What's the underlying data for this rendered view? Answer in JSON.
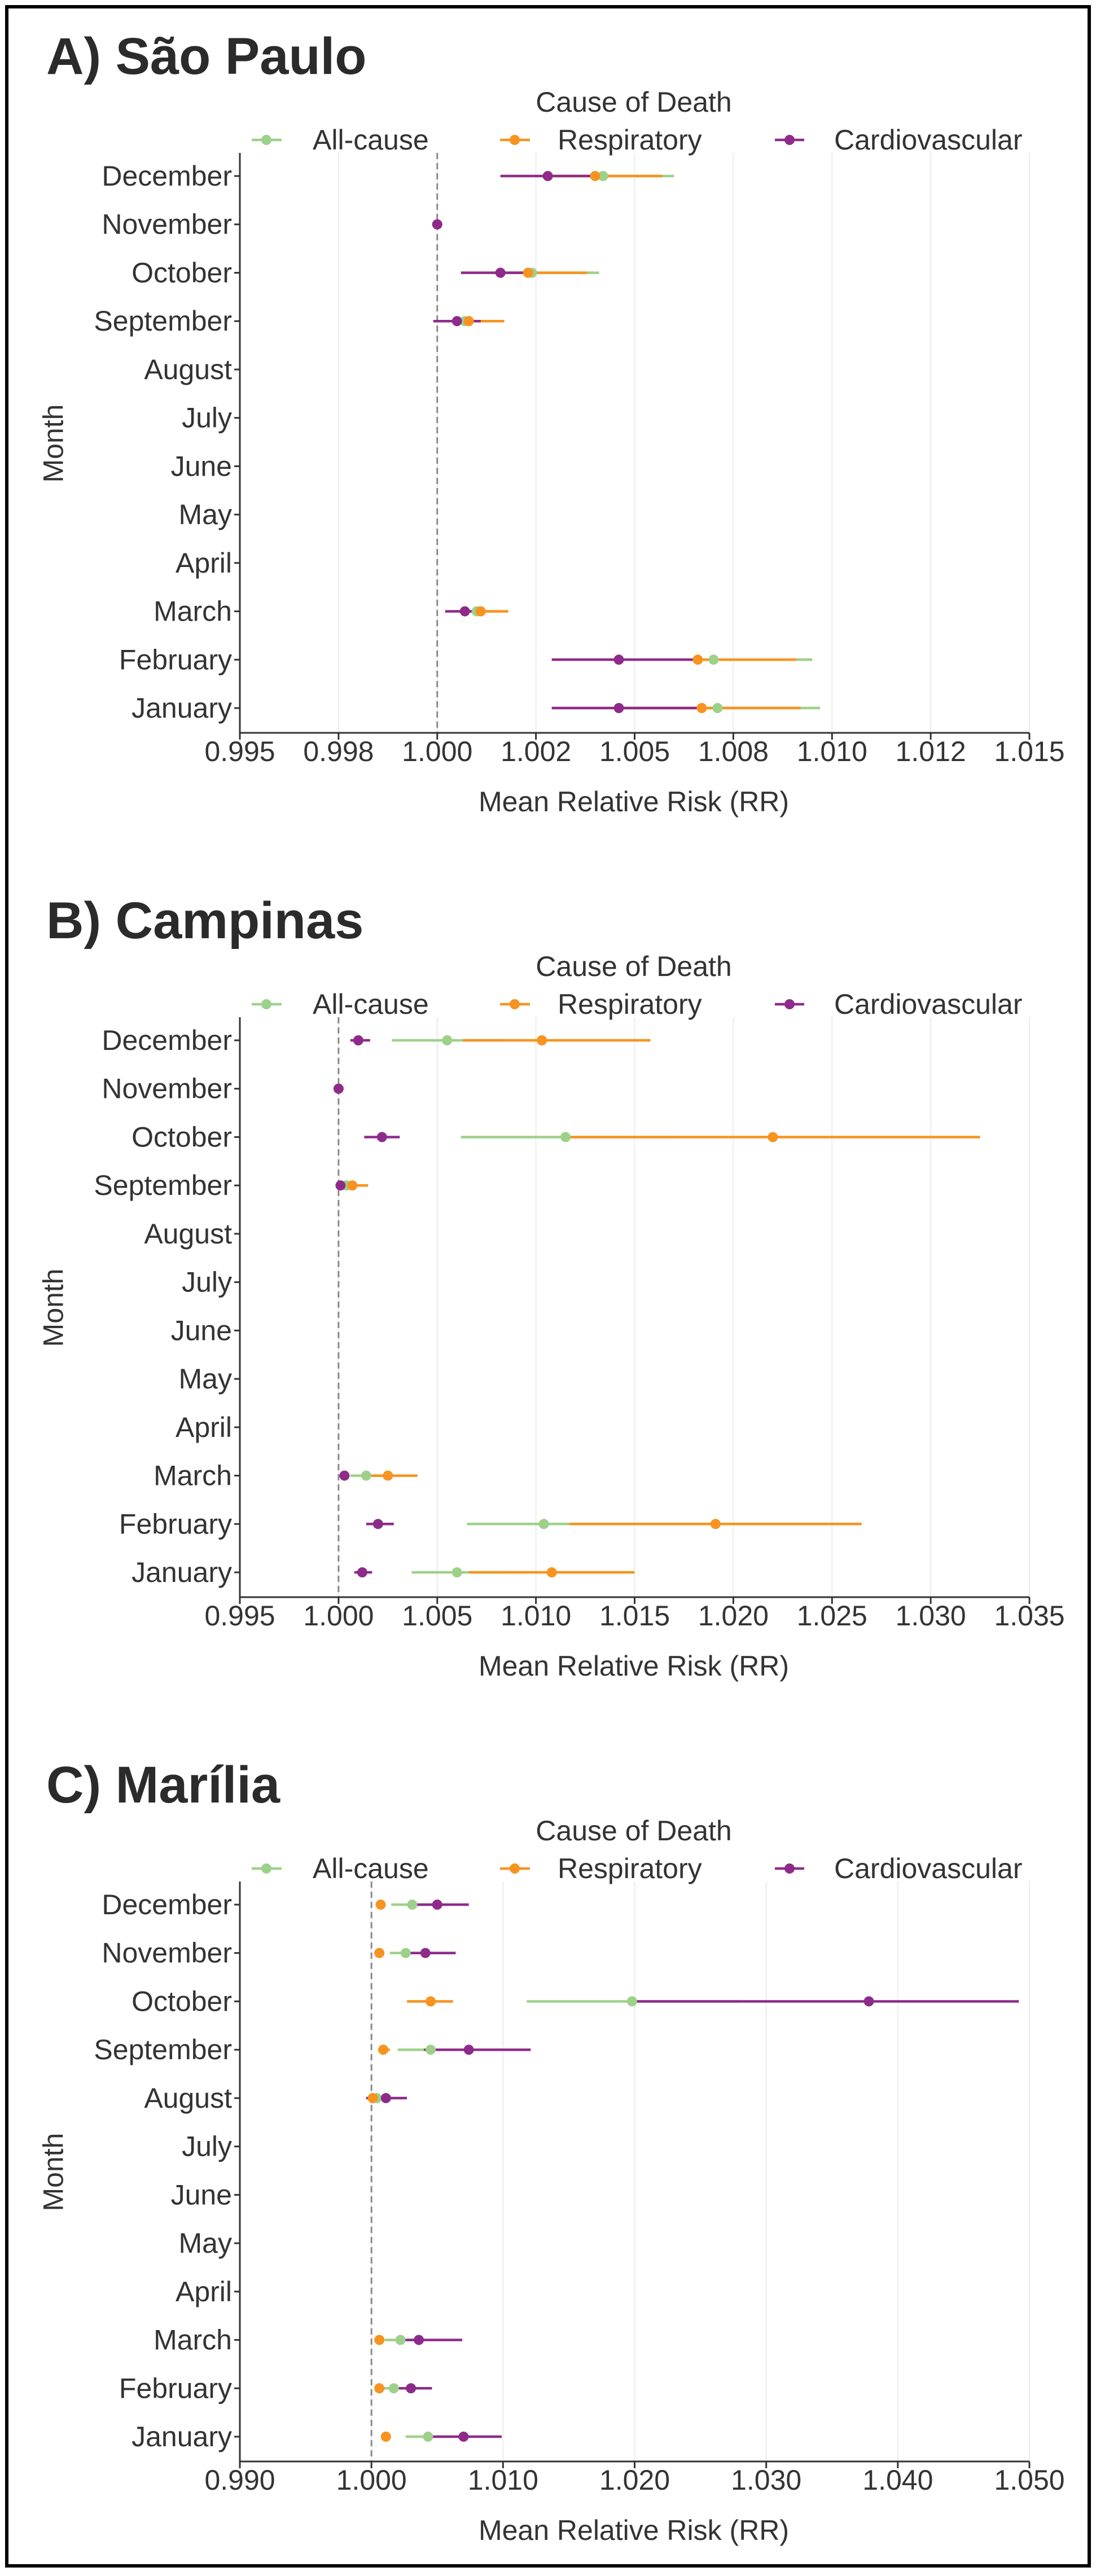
{
  "chart_data": [
    {
      "type": "scatter",
      "title": "A) São Paulo",
      "legend_title": "Cause of Death",
      "xlabel": "Mean Relative Risk (RR)",
      "ylabel": "Month",
      "xlim": [
        0.995,
        1.015
      ],
      "xticks": [
        0.995,
        0.9975,
        1.0,
        1.0025,
        1.005,
        1.0075,
        1.01,
        1.0125,
        1.015
      ],
      "xtick_labels": [
        "0.995",
        "0.998",
        "1.000",
        "1.002",
        "1.005",
        "1.008",
        "1.010",
        "1.012",
        "1.015"
      ],
      "reference_line": 1.0,
      "grid": "vertical",
      "categories": [
        "December",
        "November",
        "October",
        "September",
        "August",
        "July",
        "June",
        "May",
        "April",
        "March",
        "February",
        "January"
      ],
      "series": [
        {
          "name": "All-cause",
          "color": "#9dd18a",
          "mean": [
            1.0042,
            1.0,
            1.0024,
            1.0007,
            null,
            null,
            null,
            null,
            null,
            1.001,
            1.007,
            1.0071
          ],
          "lower": [
            1.003,
            1.0,
            1.0015,
            1.0003,
            null,
            null,
            null,
            null,
            null,
            1.0006,
            1.0047,
            1.0048
          ],
          "upper": [
            1.006,
            1.0,
            1.0041,
            1.0014,
            null,
            null,
            null,
            null,
            null,
            1.0016,
            1.0095,
            1.0097
          ]
        },
        {
          "name": "Respiratory",
          "color": "#f7931e",
          "mean": [
            1.004,
            1.0,
            1.0023,
            1.0008,
            null,
            null,
            null,
            null,
            null,
            1.0011,
            1.0066,
            1.0067
          ],
          "lower": [
            1.0028,
            1.0,
            1.0014,
            1.0003,
            null,
            null,
            null,
            null,
            null,
            1.0006,
            1.0045,
            1.0046
          ],
          "upper": [
            1.0057,
            1.0,
            1.0038,
            1.0017,
            null,
            null,
            null,
            null,
            null,
            1.0018,
            1.0091,
            1.0092
          ]
        },
        {
          "name": "Cardiovascular",
          "color": "#8e2b8a",
          "mean": [
            1.0028,
            1.0,
            1.0016,
            1.0005,
            null,
            null,
            null,
            null,
            null,
            1.0007,
            1.0046,
            1.0046
          ],
          "lower": [
            1.0016,
            1.0,
            1.0006,
            0.9999,
            null,
            null,
            null,
            null,
            null,
            1.0002,
            1.0029,
            1.0029
          ],
          "upper": [
            1.0039,
            1.0,
            1.0025,
            1.0011,
            null,
            null,
            null,
            null,
            null,
            1.0012,
            1.0065,
            1.0066
          ]
        }
      ]
    },
    {
      "type": "scatter",
      "title": "B) Campinas",
      "legend_title": "Cause of Death",
      "xlabel": "Mean Relative Risk (RR)",
      "ylabel": "Month",
      "xlim": [
        0.995,
        1.035
      ],
      "xticks": [
        0.995,
        1.0,
        1.005,
        1.01,
        1.015,
        1.02,
        1.025,
        1.03,
        1.035
      ],
      "xtick_labels": [
        "0.995",
        "1.000",
        "1.005",
        "1.010",
        "1.015",
        "1.020",
        "1.025",
        "1.030",
        "1.035"
      ],
      "reference_line": 1.0,
      "grid": "vertical",
      "categories": [
        "December",
        "November",
        "October",
        "September",
        "August",
        "July",
        "June",
        "May",
        "April",
        "March",
        "February",
        "January"
      ],
      "series": [
        {
          "name": "All-cause",
          "color": "#9dd18a",
          "mean": [
            1.0055,
            1.0,
            1.0115,
            1.0004,
            null,
            null,
            null,
            null,
            null,
            1.0014,
            1.0104,
            1.006
          ],
          "lower": [
            1.0027,
            1.0,
            1.0062,
            1.0001,
            null,
            null,
            null,
            null,
            null,
            1.0006,
            1.0065,
            1.0037
          ],
          "upper": [
            1.0084,
            1.0,
            1.017,
            1.0009,
            null,
            null,
            null,
            null,
            null,
            1.0022,
            1.0143,
            1.0083
          ]
        },
        {
          "name": "Respiratory",
          "color": "#f7931e",
          "mean": [
            1.0103,
            1.0,
            1.022,
            1.0007,
            null,
            null,
            null,
            null,
            null,
            1.0025,
            1.0191,
            1.0108
          ],
          "lower": [
            1.0063,
            1.0,
            1.0117,
            1.0002,
            null,
            null,
            null,
            null,
            null,
            1.0012,
            1.0117,
            1.0066
          ],
          "upper": [
            1.0158,
            1.0,
            1.0325,
            1.0015,
            null,
            null,
            null,
            null,
            null,
            1.004,
            1.0265,
            1.015
          ]
        },
        {
          "name": "Cardiovascular",
          "color": "#8e2b8a",
          "mean": [
            1.001,
            1.0,
            1.0022,
            1.0001,
            null,
            null,
            null,
            null,
            null,
            1.0003,
            1.002,
            1.0012
          ],
          "lower": [
            1.0006,
            1.0,
            1.0013,
            0.9999,
            null,
            null,
            null,
            null,
            null,
            1.0001,
            1.0014,
            1.0008
          ],
          "upper": [
            1.0016,
            1.0,
            1.0031,
            1.0003,
            null,
            null,
            null,
            null,
            null,
            1.0005,
            1.0028,
            1.0017
          ]
        }
      ]
    },
    {
      "type": "scatter",
      "title": "C) Marília",
      "legend_title": "Cause of Death",
      "xlabel": "Mean Relative Risk (RR)",
      "ylabel": "Month",
      "xlim": [
        0.99,
        1.05
      ],
      "xticks": [
        0.99,
        1.0,
        1.01,
        1.02,
        1.03,
        1.04,
        1.05
      ],
      "xtick_labels": [
        "0.990",
        "1.000",
        "1.010",
        "1.020",
        "1.030",
        "1.040",
        "1.050"
      ],
      "reference_line": 1.0,
      "grid": "vertical",
      "categories": [
        "December",
        "November",
        "October",
        "September",
        "August",
        "July",
        "June",
        "May",
        "April",
        "March",
        "February",
        "January"
      ],
      "series": [
        {
          "name": "All-cause",
          "color": "#9dd18a",
          "mean": [
            1.0031,
            1.0026,
            1.0198,
            1.0045,
            1.0004,
            null,
            null,
            null,
            null,
            1.0022,
            1.0017,
            1.0043
          ],
          "lower": [
            1.0015,
            1.0014,
            1.0118,
            1.002,
            1.0001,
            null,
            null,
            null,
            null,
            1.001,
            1.0008,
            1.0026
          ],
          "upper": [
            1.0047,
            1.0038,
            1.0278,
            1.007,
            1.0008,
            null,
            null,
            null,
            null,
            1.0034,
            1.0026,
            1.006
          ]
        },
        {
          "name": "Respiratory",
          "color": "#f7931e",
          "mean": [
            1.0007,
            1.0006,
            1.0045,
            1.0009,
            1.0001,
            null,
            null,
            null,
            null,
            1.0006,
            1.0006,
            1.0011
          ],
          "lower": [
            1.0005,
            1.0004,
            1.0027,
            1.0005,
            0.9998,
            null,
            null,
            null,
            null,
            1.0003,
            1.0003,
            1.0008
          ],
          "upper": [
            1.001,
            1.0008,
            1.0062,
            1.0014,
            1.0003,
            null,
            null,
            null,
            null,
            1.0009,
            1.0009,
            1.0014
          ]
        },
        {
          "name": "Cardiovascular",
          "color": "#8e2b8a",
          "mean": [
            1.005,
            1.0041,
            1.0378,
            1.0074,
            1.0011,
            null,
            null,
            null,
            null,
            1.0036,
            1.003,
            1.007
          ],
          "lower": [
            1.0031,
            1.0024,
            1.02,
            1.004,
            0.9996,
            null,
            null,
            null,
            null,
            1.002,
            1.0015,
            1.0045
          ],
          "upper": [
            1.0074,
            1.0064,
            1.0492,
            1.0121,
            1.0027,
            null,
            null,
            null,
            null,
            1.0069,
            1.0046,
            1.0099
          ]
        }
      ]
    }
  ]
}
